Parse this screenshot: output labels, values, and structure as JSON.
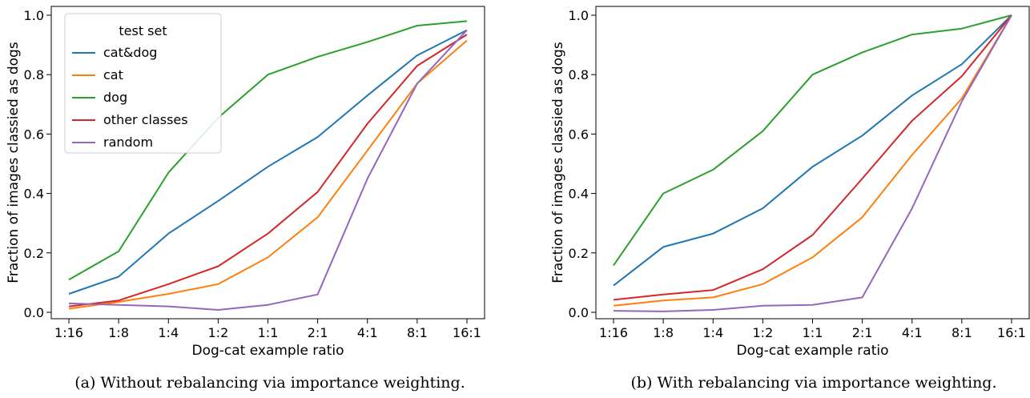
{
  "chart_data": [
    {
      "type": "line",
      "caption": "(a) Without rebalancing via importance weighting.",
      "xlabel": "Dog-cat example ratio",
      "ylabel": "Fraction of images classied as dogs",
      "categories": [
        "1:16",
        "1:8",
        "1:4",
        "1:2",
        "1:1",
        "2:1",
        "4:1",
        "8:1",
        "16:1"
      ],
      "ylim": [
        -0.02,
        1.0
      ],
      "yticks": [
        "0.0",
        "0.2",
        "0.4",
        "0.6",
        "0.8",
        "1.0"
      ],
      "grid": false,
      "legend": {
        "title": "test set",
        "placement": "upper-left",
        "entries": [
          "cat&dog",
          "cat",
          "dog",
          "other classes",
          "random"
        ]
      },
      "series": [
        {
          "name": "cat&dog",
          "color": "#1f77b4",
          "values": [
            0.062,
            0.12,
            0.265,
            0.375,
            0.49,
            0.59,
            0.73,
            0.865,
            0.95
          ]
        },
        {
          "name": "cat",
          "color": "#ff7f0e",
          "values": [
            0.012,
            0.035,
            0.062,
            0.095,
            0.185,
            0.32,
            0.545,
            0.77,
            0.915
          ]
        },
        {
          "name": "dog",
          "color": "#2ca02c",
          "values": [
            0.11,
            0.205,
            0.47,
            0.655,
            0.8,
            0.86,
            0.91,
            0.965,
            0.98
          ]
        },
        {
          "name": "other classes",
          "color": "#d62728",
          "values": [
            0.02,
            0.04,
            0.095,
            0.155,
            0.265,
            0.405,
            0.635,
            0.83,
            0.935
          ]
        },
        {
          "name": "random",
          "color": "#9467bd",
          "values": [
            0.03,
            0.025,
            0.02,
            0.008,
            0.025,
            0.06,
            0.45,
            0.77,
            0.95
          ]
        }
      ]
    },
    {
      "type": "line",
      "caption": "(b) With rebalancing via importance weighting.",
      "xlabel": "Dog-cat example ratio",
      "ylabel": "Fraction of images classied as dogs",
      "categories": [
        "1:16",
        "1:8",
        "1:4",
        "1:2",
        "1:1",
        "2:1",
        "4:1",
        "8:1",
        "16:1"
      ],
      "ylim": [
        -0.02,
        1.0
      ],
      "yticks": [
        "0.0",
        "0.2",
        "0.4",
        "0.6",
        "0.8",
        "1.0"
      ],
      "grid": false,
      "legend": null,
      "series": [
        {
          "color": "#1f77b4",
          "values": [
            0.09,
            0.22,
            0.265,
            0.35,
            0.49,
            0.595,
            0.73,
            0.835,
            1.0
          ]
        },
        {
          "color": "#ff7f0e",
          "values": [
            0.022,
            0.04,
            0.05,
            0.095,
            0.185,
            0.32,
            0.53,
            0.72,
            1.0
          ]
        },
        {
          "color": "#2ca02c",
          "values": [
            0.158,
            0.4,
            0.48,
            0.61,
            0.8,
            0.875,
            0.935,
            0.955,
            1.0
          ]
        },
        {
          "color": "#d62728",
          "values": [
            0.042,
            0.06,
            0.075,
            0.145,
            0.26,
            0.45,
            0.645,
            0.795,
            1.0
          ]
        },
        {
          "color": "#9467bd",
          "values": [
            0.005,
            0.003,
            0.008,
            0.022,
            0.025,
            0.05,
            0.35,
            0.71,
            1.0
          ]
        }
      ]
    }
  ]
}
